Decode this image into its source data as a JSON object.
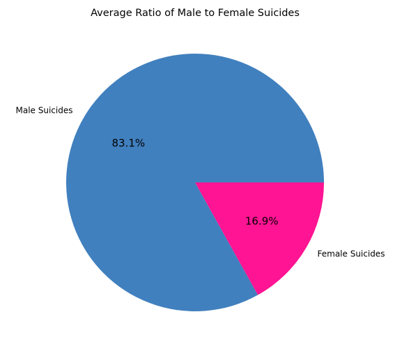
{
  "chart_data": {
    "type": "pie",
    "title": "Average Ratio of Male to Female Suicides",
    "slices": [
      {
        "label": "Male Suicides",
        "value": 83.1,
        "pct_label": "83.1%",
        "color": "#4180BE"
      },
      {
        "label": "Female Suicides",
        "value": 16.9,
        "pct_label": "16.9%",
        "color": "#FF1493"
      }
    ],
    "legend": "none"
  }
}
